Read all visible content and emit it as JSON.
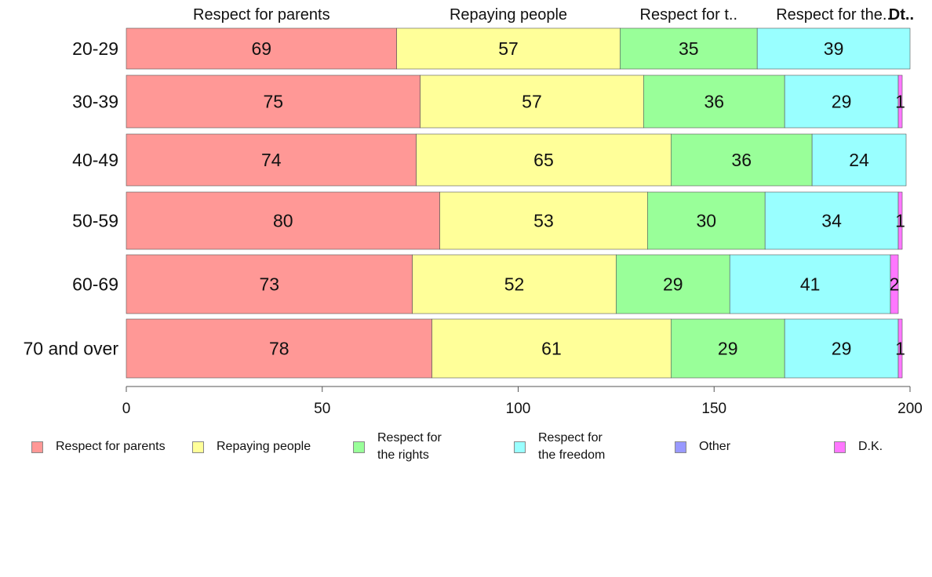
{
  "chart_data": {
    "type": "bar",
    "orientation": "horizontal",
    "stacked": true,
    "categories": [
      "20-29",
      "30-39",
      "40-49",
      "50-59",
      "60-69",
      "70 and over"
    ],
    "series": [
      {
        "name": "Respect for parents",
        "color": "#ff9896",
        "values": [
          69,
          75,
          74,
          80,
          73,
          78
        ]
      },
      {
        "name": "Repaying people",
        "color": "#ffff99",
        "values": [
          57,
          57,
          65,
          53,
          52,
          61
        ]
      },
      {
        "name": "Respect for the rights",
        "color": "#99ff99",
        "values": [
          35,
          36,
          36,
          30,
          29,
          29
        ]
      },
      {
        "name": "Respect for the freedom",
        "color": "#99ffff",
        "values": [
          39,
          29,
          24,
          34,
          41,
          29
        ]
      },
      {
        "name": "Other",
        "color": "#9999ff",
        "values": [
          0,
          0,
          0,
          0,
          0,
          0
        ]
      },
      {
        "name": "D.K.",
        "color": "#ff77ff",
        "values": [
          0,
          1,
          0,
          1,
          2,
          1
        ]
      }
    ],
    "segment_labels": [
      [
        "69",
        "57",
        "35",
        "39",
        "",
        ""
      ],
      [
        "75",
        "57",
        "36",
        "29",
        "",
        "1"
      ],
      [
        "74",
        "65",
        "36",
        "24",
        "",
        ""
      ],
      [
        "80",
        "53",
        "30",
        "34",
        "",
        "1"
      ],
      [
        "73",
        "52",
        "29",
        "41",
        "",
        "2"
      ],
      [
        "78",
        "61",
        "29",
        "29",
        "",
        "1"
      ]
    ],
    "top_labels": [
      "Respect for parents",
      "Repaying people",
      "Respect for t..",
      "Respect for the..",
      "Dt.."
    ],
    "xlim": [
      0,
      200
    ],
    "xticks": [
      0,
      50,
      100,
      150,
      200
    ],
    "legend": {
      "placement": "bottom",
      "labels": [
        "Respect for parents",
        "Repaying people",
        "Respect for\nthe rights",
        "Respect for\nthe freedom",
        "Other",
        "D.K."
      ]
    },
    "grid": false,
    "title": "",
    "xlabel": "",
    "ylabel": ""
  }
}
